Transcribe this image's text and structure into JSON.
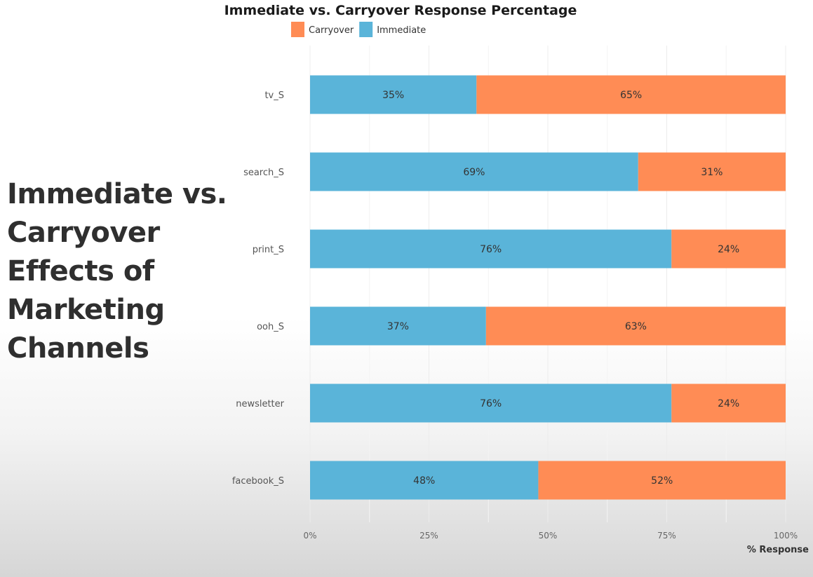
{
  "slide": {
    "title_lines": [
      "Immediate vs.",
      "Carryover",
      "Effects of",
      "Marketing",
      "Channels"
    ]
  },
  "chart_data": {
    "type": "bar",
    "orientation": "horizontal",
    "stacked": true,
    "title": "Immediate vs. Carryover Response Percentage",
    "xlabel": "% Response",
    "ylabel": "",
    "xlim": [
      0,
      100
    ],
    "x_ticks": [
      "0%",
      "25%",
      "50%",
      "75%",
      "100%"
    ],
    "legend_position": "top",
    "legend": [
      {
        "name": "Carryover",
        "color": "#ff8c55"
      },
      {
        "name": "Immediate",
        "color": "#5ab4d9"
      }
    ],
    "categories": [
      "tv_S",
      "search_S",
      "print_S",
      "ooh_S",
      "newsletter",
      "facebook_S"
    ],
    "series": [
      {
        "name": "Immediate",
        "color": "#5ab4d9",
        "values": [
          35,
          69,
          76,
          37,
          76,
          48
        ],
        "labels": [
          "35%",
          "69%",
          "76%",
          "37%",
          "76%",
          "48%"
        ]
      },
      {
        "name": "Carryover",
        "color": "#ff8c55",
        "values": [
          65,
          31,
          24,
          63,
          24,
          52
        ],
        "labels": [
          "65%",
          "31%",
          "24%",
          "63%",
          "24%",
          "52%"
        ]
      }
    ],
    "grid": true
  }
}
